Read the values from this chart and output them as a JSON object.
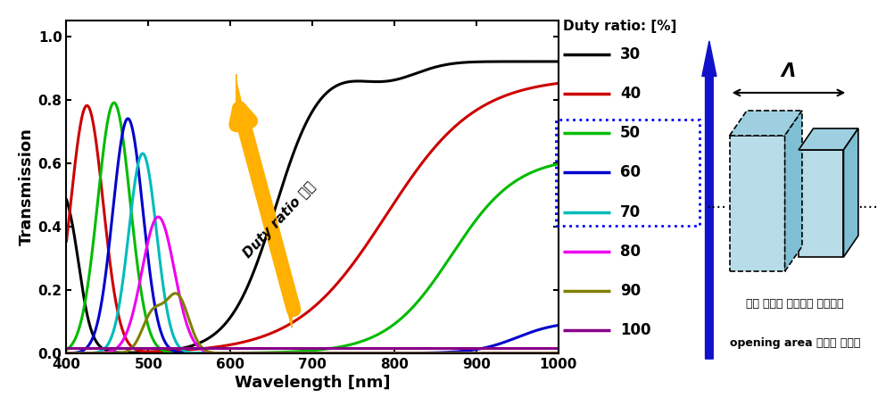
{
  "xlabel": "Wavelength [nm]",
  "ylabel": "Transmission",
  "xlim": [
    400,
    1000
  ],
  "ylim": [
    0.0,
    1.05
  ],
  "yticks": [
    0.0,
    0.2,
    0.4,
    0.6,
    0.8,
    1.0
  ],
  "xticks": [
    400,
    500,
    600,
    700,
    800,
    900,
    1000
  ],
  "legend_title": "Duty ratio: [%]",
  "legend_items": [
    {
      "duty": 30,
      "color": "#000000",
      "ls": "-",
      "lw": 2.2
    },
    {
      "duty": 40,
      "color": "#cc0000",
      "ls": "-",
      "lw": 2.2
    },
    {
      "duty": 50,
      "color": "#00bb00",
      "ls": "-",
      "lw": 2.2
    },
    {
      "duty": 60,
      "color": "#0000cc",
      "ls": "-",
      "lw": 2.2,
      "dotted_box": true
    },
    {
      "duty": 70,
      "color": "#00bbbb",
      "ls": "-",
      "lw": 2.2
    },
    {
      "duty": 80,
      "color": "#ee00ee",
      "ls": "-",
      "lw": 2.2
    },
    {
      "duty": 90,
      "color": "#808000",
      "ls": "-",
      "lw": 2.2
    },
    {
      "duty": 100,
      "color": "#880088",
      "ls": "-",
      "lw": 2.2
    }
  ],
  "arrow_text": "Duty ratio 감소",
  "annotation_line1": "금속 선폭이 차지하는 면적보다",
  "annotation_line2": "opening area 면적이 넓어짘",
  "lambda_label": "Λ"
}
